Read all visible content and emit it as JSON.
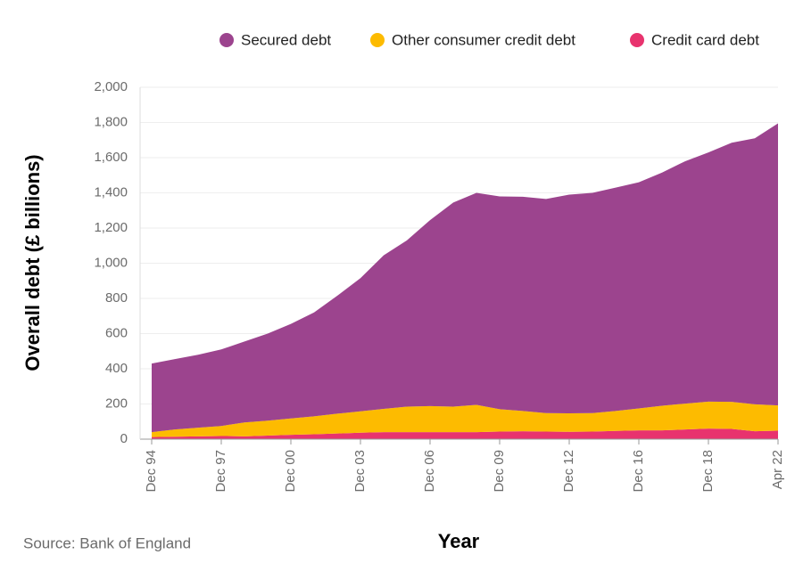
{
  "chart_data": {
    "type": "stacked_area",
    "y_label": "Overall debt (£ billions)",
    "x_label": "Year",
    "source": "Source: Bank of England",
    "categories": [
      "Dec 94",
      null,
      null,
      "Dec 97",
      null,
      null,
      "Dec 00",
      null,
      null,
      "Dec 03",
      null,
      null,
      "Dec 06",
      null,
      null,
      "Dec 09",
      null,
      null,
      "Dec 12",
      null,
      null,
      "Dec 16",
      null,
      null,
      "Dec 18",
      null,
      null,
      "Apr 22"
    ],
    "series": [
      {
        "name": "Secured debt",
        "color": "#9c448e",
        "values": [
          390,
          400,
          415,
          435,
          460,
          495,
          537,
          590,
          670,
          757,
          873,
          945,
          1057,
          1160,
          1205,
          1210,
          1218,
          1217,
          1243,
          1252,
          1270,
          1285,
          1325,
          1378,
          1417,
          1473,
          1512,
          1603
        ]
      },
      {
        "name": "Other consumer credit debt",
        "color": "#fdbb00",
        "values": [
          28,
          41,
          49,
          57,
          79,
          85,
          93,
          102,
          113,
          121,
          132,
          145,
          148,
          145,
          155,
          127,
          115,
          105,
          105,
          105,
          113,
          125,
          140,
          147,
          153,
          154,
          153,
          144
        ]
      },
      {
        "name": "Credit card debt",
        "color": "#e8336e",
        "values": [
          12,
          14,
          16,
          18,
          16,
          20,
          25,
          28,
          32,
          37,
          40,
          40,
          40,
          40,
          40,
          43,
          45,
          43,
          42,
          43,
          47,
          50,
          50,
          55,
          60,
          58,
          45,
          48
        ]
      }
    ],
    "ylim": [
      0,
      2000
    ],
    "yticks": [
      0,
      200,
      400,
      600,
      800,
      {
        "value": 1000,
        "label": "1,000"
      },
      {
        "value": 1200,
        "label": "1,200"
      },
      {
        "value": 1400,
        "label": "1,400"
      },
      {
        "value": 1600,
        "label": "1,600"
      },
      {
        "value": 1800,
        "label": "1,800"
      },
      {
        "value": 2000,
        "label": "2,000"
      }
    ],
    "grid": true
  }
}
